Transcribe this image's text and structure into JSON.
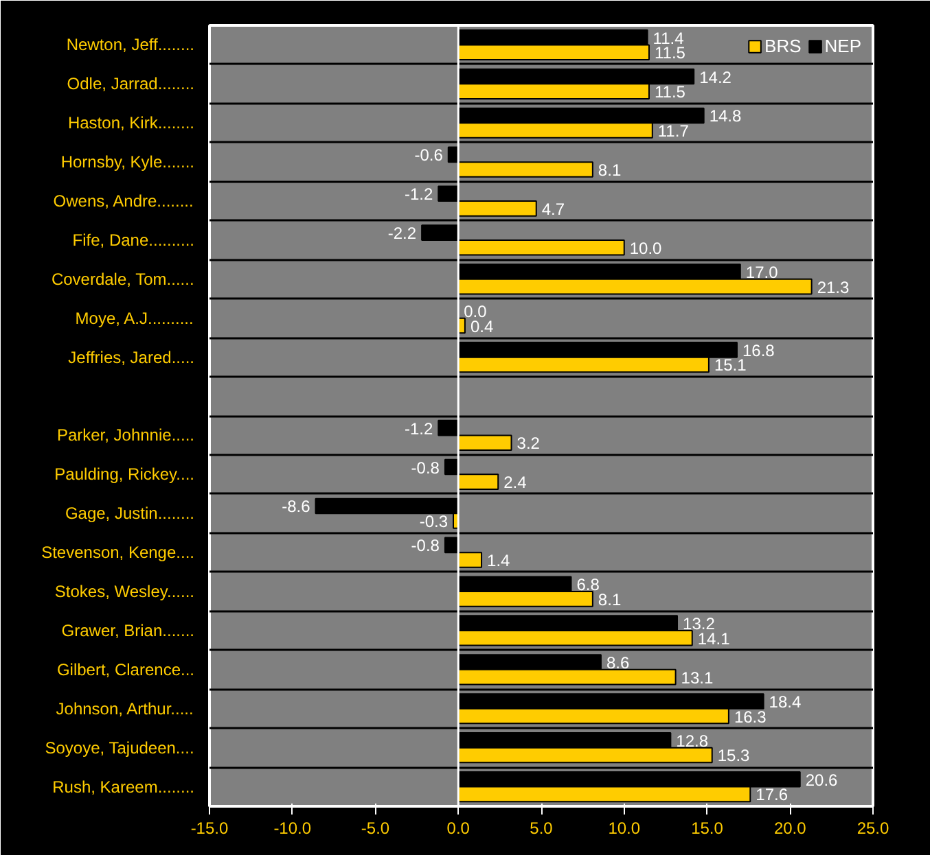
{
  "chart_data": {
    "type": "bar",
    "orientation": "horizontal",
    "categories": [
      "Newton, Jeff........",
      "Odle, Jarrad........",
      "Haston, Kirk........",
      "Hornsby, Kyle.......",
      "Owens, Andre........",
      "Fife, Dane..........",
      "Coverdale, Tom......",
      "Moye, A.J..........",
      "Jeffries, Jared.....",
      null,
      "Parker, Johnnie.....",
      "Paulding, Rickey....",
      "Gage, Justin........",
      "Stevenson, Kenge....",
      "Stokes, Wesley......",
      "Grawer, Brian.......",
      "Gilbert, Clarence...",
      "Johnson, Arthur.....",
      "Soyoye, Tajudeen....",
      "Rush, Kareem........"
    ],
    "series": [
      {
        "name": "NEP",
        "color": "#000000",
        "values": [
          11.4,
          14.2,
          14.8,
          -0.6,
          -1.2,
          -2.2,
          17.0,
          0.0,
          16.8,
          null,
          -1.2,
          -0.8,
          -8.6,
          -0.8,
          6.8,
          13.2,
          8.6,
          18.4,
          12.8,
          20.6
        ],
        "value_labels": [
          "11.4",
          "14.2",
          "14.8",
          "-0.6",
          "-1.2",
          "-2.2",
          "17.0",
          "0.0",
          "16.8",
          null,
          "-1.2",
          "-0.8",
          "-8.6",
          "-0.8",
          "6.8",
          "13.2",
          "8.6",
          "18.4",
          "12.8",
          "20.6"
        ]
      },
      {
        "name": "BRS",
        "color": "#ffcc00",
        "values": [
          11.5,
          11.5,
          11.7,
          8.1,
          4.7,
          10.0,
          21.3,
          0.4,
          15.1,
          null,
          3.2,
          2.4,
          -0.3,
          1.4,
          8.1,
          14.1,
          13.1,
          16.3,
          15.3,
          17.6
        ],
        "value_labels": [
          "11.5",
          "11.5",
          "11.7",
          "8.1",
          "4.7",
          "10.0",
          "21.3",
          "0.4",
          "15.1",
          null,
          "3.2",
          "2.4",
          "-0.3",
          "1.4",
          "8.1",
          "14.1",
          "13.1",
          "16.3",
          "15.3",
          "17.6"
        ]
      }
    ],
    "xlim": [
      -15,
      25
    ],
    "xticks": [
      {
        "value": -15,
        "label": "-15.0"
      },
      {
        "value": -10,
        "label": "-10.0"
      },
      {
        "value": -5,
        "label": "-5.0"
      },
      {
        "value": 0,
        "label": "0.0"
      },
      {
        "value": 5,
        "label": "5.0"
      },
      {
        "value": 10,
        "label": "10.0"
      },
      {
        "value": 15,
        "label": "15.0"
      },
      {
        "value": 20,
        "label": "20.0"
      },
      {
        "value": 25,
        "label": "25.0"
      }
    ],
    "legend": "top right",
    "grid": "y"
  }
}
